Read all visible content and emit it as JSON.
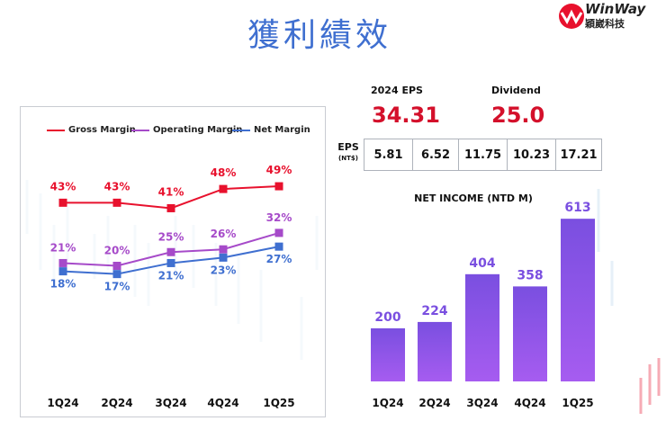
{
  "header": {
    "title": "獲利績效",
    "logo_name": "WinWay",
    "logo_sub": "穎崴科技"
  },
  "colors": {
    "gross": "#e8112d",
    "operating": "#a64ac9",
    "net": "#3f6fd0",
    "title": "#3f6fd0"
  },
  "summary": {
    "eps_label": "2024 EPS",
    "eps_value": "34.31",
    "dividend_label": "Dividend",
    "dividend_value": "25.0"
  },
  "eps_row": {
    "label": "EPS",
    "unit": "(NT$)",
    "values": [
      "5.81",
      "6.52",
      "11.75",
      "10.23",
      "17.21"
    ]
  },
  "chart_data": [
    {
      "type": "line",
      "title": "",
      "categories": [
        "1Q24",
        "2Q24",
        "3Q24",
        "4Q24",
        "1Q25"
      ],
      "series": [
        {
          "name": "Gross Margin",
          "values": [
            43,
            43,
            41,
            48,
            49
          ],
          "labels": [
            "43%",
            "43%",
            "41%",
            "48%",
            "49%"
          ]
        },
        {
          "name": "Operating Margin",
          "values": [
            21,
            20,
            25,
            26,
            32
          ],
          "labels": [
            "21%",
            "20%",
            "25%",
            "26%",
            "32%"
          ]
        },
        {
          "name": "Net Margin",
          "values": [
            18,
            17,
            21,
            23,
            27
          ],
          "labels": [
            "18%",
            "17%",
            "21%",
            "23%",
            "27%"
          ]
        }
      ],
      "legend_position": "top",
      "grid": false
    },
    {
      "type": "bar",
      "title": "NET INCOME (NTD M)",
      "categories": [
        "1Q24",
        "2Q24",
        "3Q24",
        "4Q24",
        "1Q25"
      ],
      "values": [
        200,
        224,
        404,
        358,
        613
      ],
      "ylim": [
        0,
        700
      ],
      "grid": false
    }
  ]
}
